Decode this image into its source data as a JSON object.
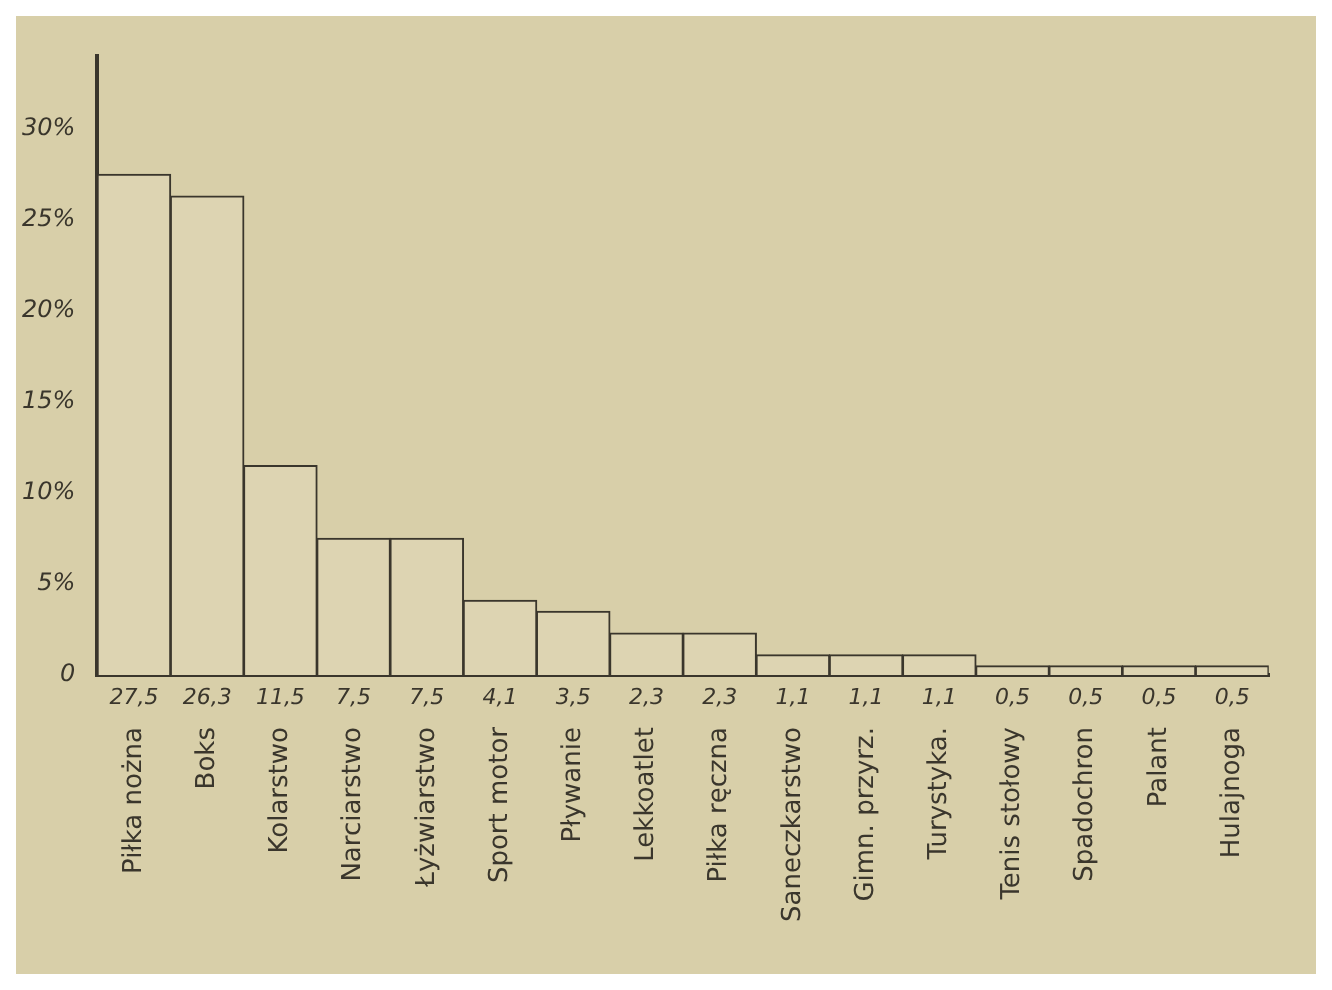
{
  "chart_data": {
    "type": "bar",
    "categories": [
      "Piłka nożna",
      "Boks",
      "Kolarstwo",
      "Narciarstwo",
      "Łyżwiarstwo",
      "Sport motor",
      "Pływanie",
      "Lekkoatlet",
      "Piłka ręczna",
      "Saneczkarstwo",
      "Gimn. przyrz.",
      "Turystyka.",
      "Tenis stołowy",
      "Spadochron",
      "Palant",
      "Hulajnoga"
    ],
    "values": [
      27.5,
      26.3,
      11.5,
      7.5,
      7.5,
      4.1,
      3.5,
      2.3,
      2.3,
      1.1,
      1.1,
      1.1,
      0.5,
      0.5,
      0.5,
      0.5
    ],
    "value_labels": [
      "27,5",
      "26,3",
      "11,5",
      "7,5",
      "7,5",
      "4,1",
      "3,5",
      "2,3",
      "2,3",
      "1,1",
      "1,1",
      "1,1",
      "0,5",
      "0,5",
      "0,5",
      "0,5"
    ],
    "color": "#ddd4b2",
    "ylim": [
      0,
      34
    ],
    "yticks": [
      0,
      {
        "value": 5,
        "label": "5%"
      },
      {
        "value": 10,
        "label": "10%"
      },
      {
        "value": 15,
        "label": "15%"
      },
      {
        "value": 20,
        "label": "20%"
      },
      {
        "value": 25,
        "label": "25%"
      },
      {
        "value": 30,
        "label": "30%"
      }
    ],
    "grid": false,
    "legend": false
  }
}
